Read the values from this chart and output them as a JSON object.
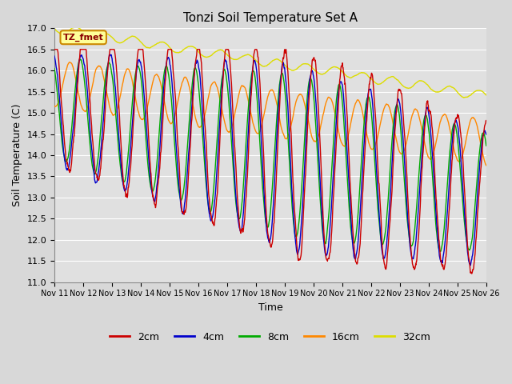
{
  "title": "Tonzi Soil Temperature Set A",
  "xlabel": "Time",
  "ylabel": "Soil Temperature (C)",
  "ylim": [
    11.0,
    17.0
  ],
  "yticks": [
    11.0,
    11.5,
    12.0,
    12.5,
    13.0,
    13.5,
    14.0,
    14.5,
    15.0,
    15.5,
    16.0,
    16.5,
    17.0
  ],
  "xtick_labels": [
    "Nov 11",
    "Nov 12",
    "Nov 13",
    "Nov 14",
    "Nov 15",
    "Nov 16",
    "Nov 17",
    "Nov 18",
    "Nov 19",
    "Nov 20",
    "Nov 21",
    "Nov 22",
    "Nov 23",
    "Nov 24",
    "Nov 25",
    "Nov 26"
  ],
  "colors": {
    "2cm": "#cc0000",
    "4cm": "#0000cc",
    "8cm": "#00aa00",
    "16cm": "#ff8800",
    "32cm": "#dddd00"
  },
  "legend_label": "TZ_fmet",
  "legend_bg": "#ffff99",
  "legend_border": "#cc8800",
  "fig_bg": "#d8d8d8",
  "plot_bg": "#e0e0e0",
  "grid_color": "#ffffff",
  "n_points": 1440
}
